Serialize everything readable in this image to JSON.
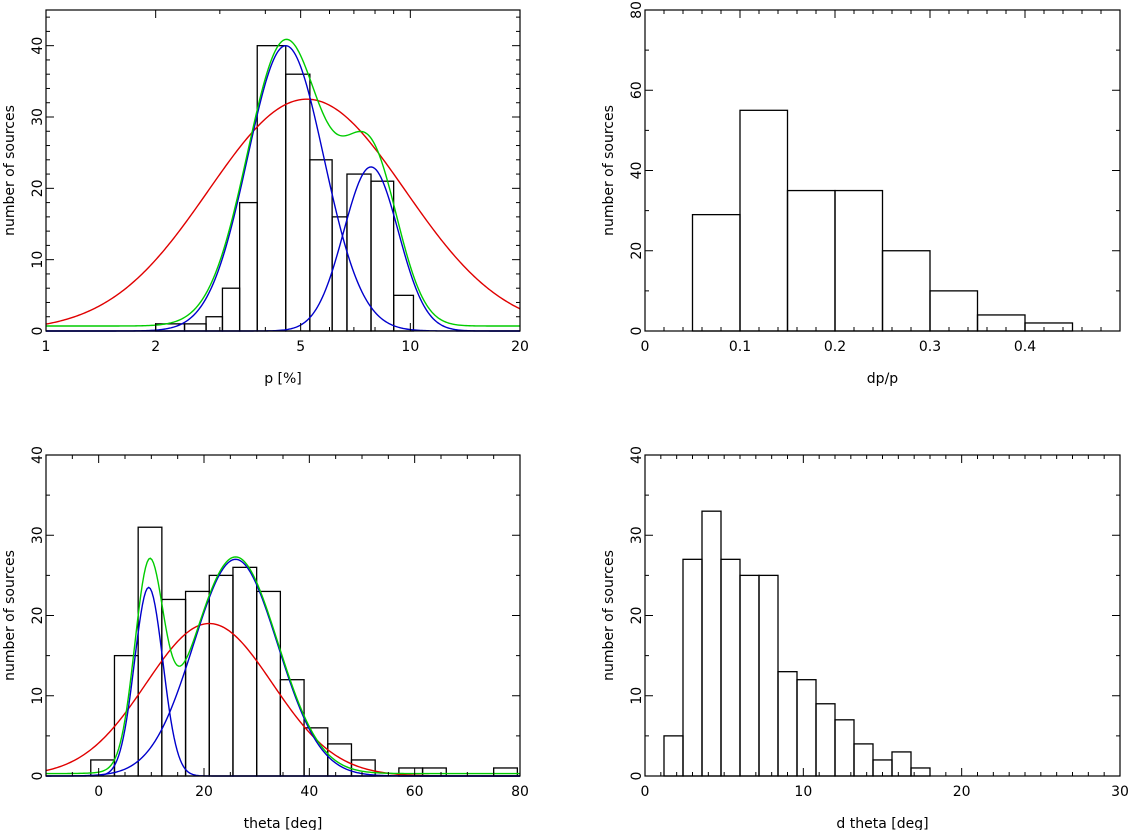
{
  "colors": {
    "red": "#e00000",
    "blue": "#0000cc",
    "green": "#00cc00",
    "axis": "#000000"
  },
  "chart_data": [
    {
      "id": "p",
      "type": "bar",
      "xscale": "log",
      "xlabel": "p [%]",
      "ylabel": "number of sources",
      "xlim": [
        1,
        20
      ],
      "ylim": [
        0,
        45
      ],
      "xticks_major": [
        1,
        2,
        5,
        10,
        20
      ],
      "xtick_labels": [
        "1",
        "2",
        "5",
        "10",
        "20"
      ],
      "yticks_major": [
        0,
        10,
        20,
        30,
        40
      ],
      "ytick_labels": [
        "0",
        "10",
        "20",
        "30",
        "40"
      ],
      "bins": [
        {
          "x0": 2.0,
          "x1": 2.4,
          "value": 1
        },
        {
          "x0": 2.4,
          "x1": 2.75,
          "value": 1
        },
        {
          "x0": 2.75,
          "x1": 3.05,
          "value": 2
        },
        {
          "x0": 3.05,
          "x1": 3.4,
          "value": 6
        },
        {
          "x0": 3.4,
          "x1": 3.8,
          "value": 18
        },
        {
          "x0": 3.8,
          "x1": 4.55,
          "value": 40
        },
        {
          "x0": 4.55,
          "x1": 5.3,
          "value": 36
        },
        {
          "x0": 5.3,
          "x1": 6.1,
          "value": 24
        },
        {
          "x0": 6.1,
          "x1": 6.7,
          "value": 16
        },
        {
          "x0": 6.7,
          "x1": 7.8,
          "value": 22
        },
        {
          "x0": 7.8,
          "x1": 9.0,
          "value": 21
        },
        {
          "x0": 9.0,
          "x1": 10.2,
          "value": 5
        }
      ],
      "series": [
        {
          "color": "red",
          "model": "gaussian_log",
          "peak": 32.5,
          "center": 5.2,
          "width": 0.27,
          "offset": 0
        },
        {
          "color": "blue",
          "model": "gaussian_log",
          "peak": 40,
          "center": 4.55,
          "width": 0.105,
          "offset": 0
        },
        {
          "color": "blue",
          "model": "gaussian_log",
          "peak": 23,
          "center": 7.8,
          "width": 0.075,
          "offset": 0
        },
        {
          "color": "green",
          "model": "sum_of",
          "components": [
            1,
            2
          ],
          "offset": 0.7
        }
      ]
    },
    {
      "id": "dp",
      "type": "bar",
      "xlabel": "dp/p",
      "ylabel": "number of sources",
      "xlim": [
        0,
        0.5
      ],
      "ylim": [
        0,
        80
      ],
      "xticks_major": [
        0,
        0.1,
        0.2,
        0.3,
        0.4
      ],
      "xtick_labels": [
        "0",
        "0.1",
        "0.2",
        "0.3",
        "0.4"
      ],
      "xticks_minor_step": 0.02,
      "yticks_major": [
        0,
        20,
        40,
        60,
        80
      ],
      "ytick_labels": [
        "0",
        "20",
        "40",
        "60",
        "80"
      ],
      "yticks_minor_step": 10,
      "bins": [
        {
          "x0": 0.05,
          "x1": 0.1,
          "value": 29
        },
        {
          "x0": 0.1,
          "x1": 0.15,
          "value": 55
        },
        {
          "x0": 0.15,
          "x1": 0.2,
          "value": 35
        },
        {
          "x0": 0.2,
          "x1": 0.25,
          "value": 35
        },
        {
          "x0": 0.25,
          "x1": 0.3,
          "value": 20
        },
        {
          "x0": 0.3,
          "x1": 0.35,
          "value": 10
        },
        {
          "x0": 0.35,
          "x1": 0.4,
          "value": 4
        },
        {
          "x0": 0.4,
          "x1": 0.45,
          "value": 2
        }
      ],
      "series": []
    },
    {
      "id": "theta",
      "type": "bar",
      "xlabel": "theta [deg]",
      "ylabel": "number of sources",
      "xlim": [
        -10,
        80
      ],
      "ylim": [
        0,
        40
      ],
      "xticks_major": [
        0,
        20,
        40,
        60,
        80
      ],
      "xtick_labels": [
        "0",
        "20",
        "40",
        "60",
        "80"
      ],
      "xticks_minor_step": 5,
      "yticks_major": [
        0,
        10,
        20,
        30,
        40
      ],
      "ytick_labels": [
        "0",
        "10",
        "20",
        "30",
        "40"
      ],
      "yticks_minor_step": 5,
      "bins": [
        {
          "x0": -1.5,
          "x1": 3,
          "value": 2
        },
        {
          "x0": 3,
          "x1": 7.5,
          "value": 15
        },
        {
          "x0": 7.5,
          "x1": 12,
          "value": 31
        },
        {
          "x0": 12,
          "x1": 16.5,
          "value": 22
        },
        {
          "x0": 16.5,
          "x1": 21,
          "value": 23
        },
        {
          "x0": 21,
          "x1": 25.5,
          "value": 25
        },
        {
          "x0": 25.5,
          "x1": 30,
          "value": 26
        },
        {
          "x0": 30,
          "x1": 34.5,
          "value": 23
        },
        {
          "x0": 34.5,
          "x1": 39,
          "value": 12
        },
        {
          "x0": 39,
          "x1": 43.5,
          "value": 6
        },
        {
          "x0": 43.5,
          "x1": 48,
          "value": 4
        },
        {
          "x0": 48,
          "x1": 52.5,
          "value": 2
        },
        {
          "x0": 57,
          "x1": 61.5,
          "value": 1
        },
        {
          "x0": 61.5,
          "x1": 66,
          "value": 1
        },
        {
          "x0": 75,
          "x1": 79.5,
          "value": 1
        }
      ],
      "series": [
        {
          "color": "red",
          "model": "gaussian",
          "peak": 19,
          "center": 21,
          "width": 12,
          "offset": 0
        },
        {
          "color": "blue",
          "model": "gaussian",
          "peak": 23.5,
          "center": 9.5,
          "width": 2.7,
          "offset": 0
        },
        {
          "color": "blue",
          "model": "gaussian",
          "peak": 27,
          "center": 26,
          "width": 8,
          "offset": 0
        },
        {
          "color": "green",
          "model": "sum_of",
          "components": [
            1,
            2
          ],
          "offset": 0.3
        }
      ]
    },
    {
      "id": "dtheta",
      "type": "bar",
      "xlabel": "d theta [deg]",
      "ylabel": "number of sources",
      "xlim": [
        0,
        30
      ],
      "ylim": [
        0,
        40
      ],
      "xticks_major": [
        0,
        10,
        20,
        30
      ],
      "xtick_labels": [
        "0",
        "10",
        "20",
        "30"
      ],
      "xticks_minor_step": 1,
      "yticks_major": [
        0,
        10,
        20,
        30,
        40
      ],
      "ytick_labels": [
        "0",
        "10",
        "20",
        "30",
        "40"
      ],
      "yticks_minor_step": 5,
      "bins": [
        {
          "x0": 1.2,
          "x1": 2.4,
          "value": 5
        },
        {
          "x0": 2.4,
          "x1": 3.6,
          "value": 27
        },
        {
          "x0": 3.6,
          "x1": 4.8,
          "value": 33
        },
        {
          "x0": 4.8,
          "x1": 6.0,
          "value": 27
        },
        {
          "x0": 6.0,
          "x1": 7.2,
          "value": 25
        },
        {
          "x0": 7.2,
          "x1": 8.4,
          "value": 25
        },
        {
          "x0": 8.4,
          "x1": 9.6,
          "value": 13
        },
        {
          "x0": 9.6,
          "x1": 10.8,
          "value": 12
        },
        {
          "x0": 10.8,
          "x1": 12.0,
          "value": 9
        },
        {
          "x0": 12.0,
          "x1": 13.2,
          "value": 7
        },
        {
          "x0": 13.2,
          "x1": 14.4,
          "value": 4
        },
        {
          "x0": 14.4,
          "x1": 15.6,
          "value": 2
        },
        {
          "x0": 15.6,
          "x1": 16.8,
          "value": 3
        },
        {
          "x0": 16.8,
          "x1": 18.0,
          "value": 1
        }
      ],
      "series": []
    }
  ]
}
